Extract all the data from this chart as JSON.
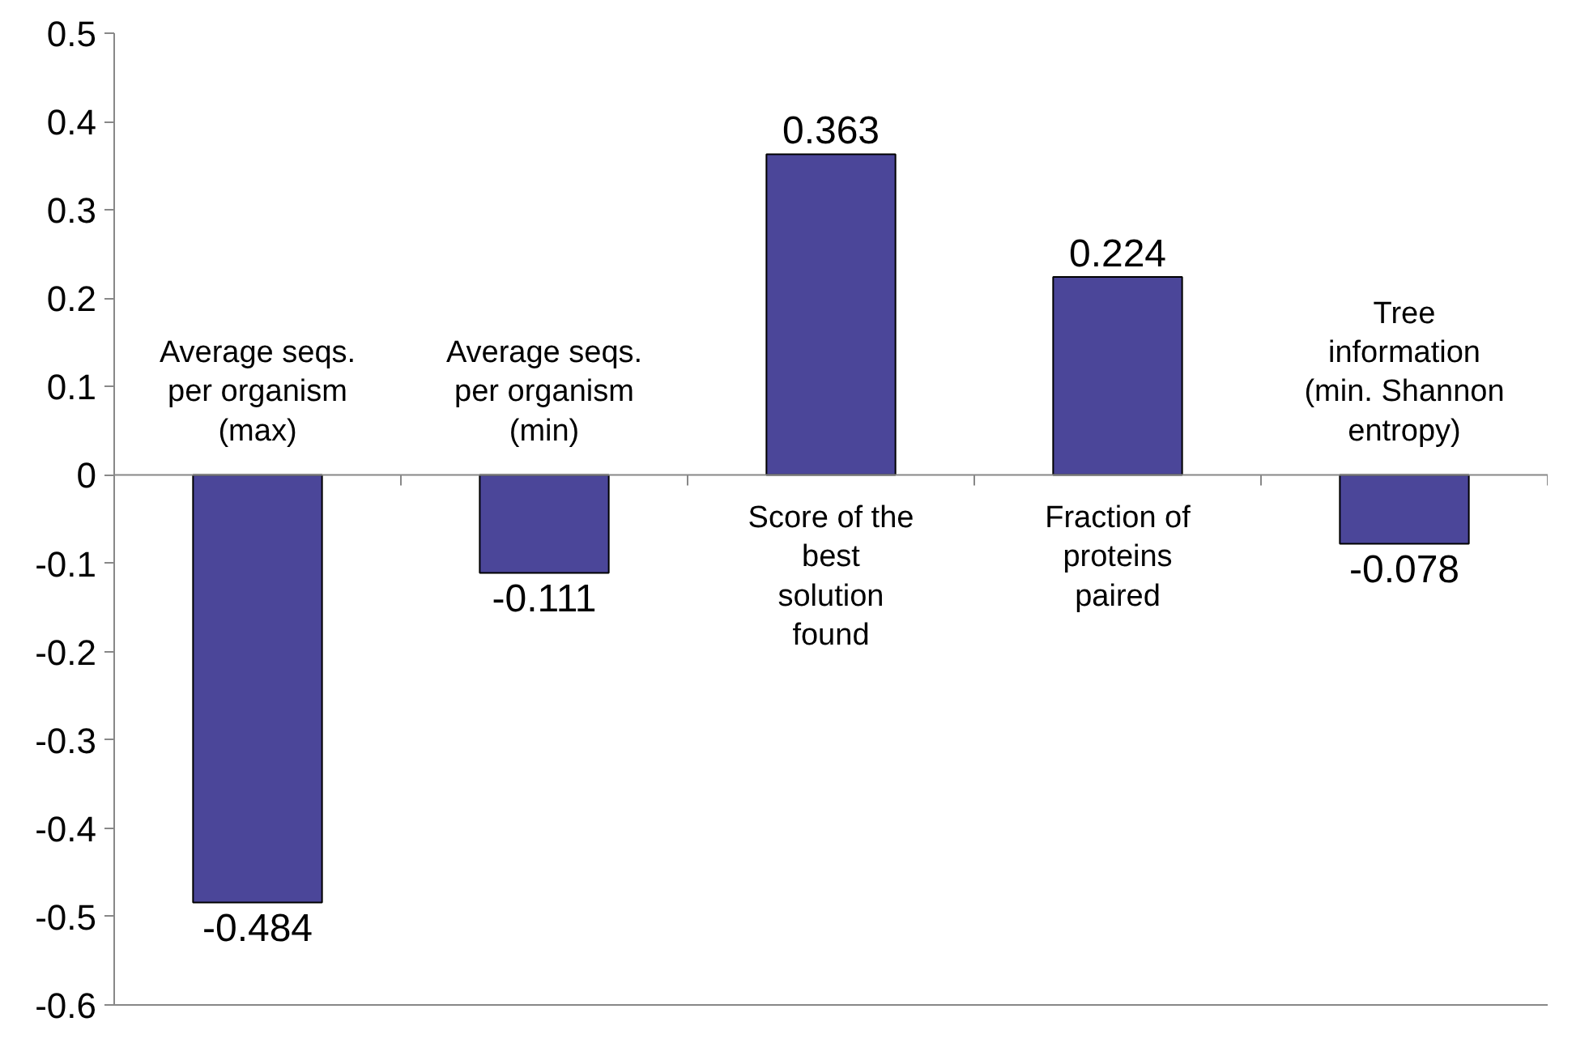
{
  "chart_data": {
    "type": "bar",
    "categories": [
      "Average seqs.\nper organism\n(max)",
      "Average seqs.\nper organism\n(min)",
      "Score of the\nbest\nsolution\nfound",
      "Fraction of\nproteins\npaired",
      "Tree\ninformation\n(min. Shannon\nentropy)"
    ],
    "values": [
      -0.484,
      -0.111,
      0.363,
      0.224,
      -0.078
    ],
    "color": "#4b4699",
    "ylim": [
      -0.6,
      0.5
    ],
    "yticks": [
      -0.6,
      -0.5,
      -0.4,
      -0.3,
      -0.2,
      -0.1,
      0,
      0.1,
      0.2,
      0.3,
      0.4,
      0.5
    ],
    "data_labels": true,
    "grid": false
  }
}
